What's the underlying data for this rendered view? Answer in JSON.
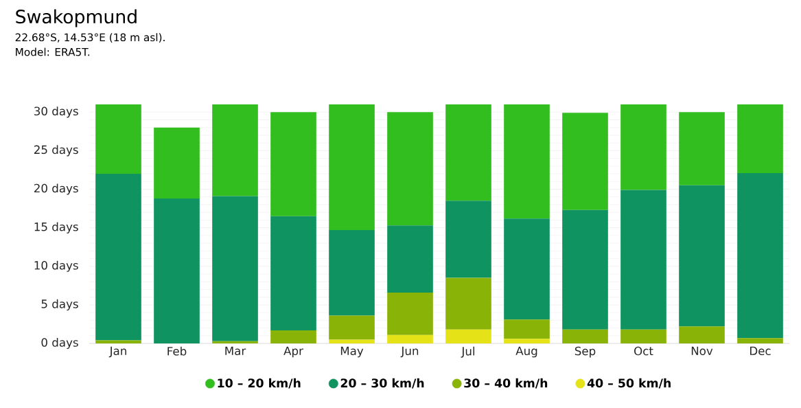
{
  "chart_data": {
    "type": "bar",
    "stacked": true,
    "title": "Swakopmund",
    "subtitle": "22.68°S, 14.53°E (18 m asl).",
    "annotations": [
      "Model: ERA5T."
    ],
    "categories": [
      "Jan",
      "Feb",
      "Mar",
      "Apr",
      "May",
      "Jun",
      "Jul",
      "Aug",
      "Sep",
      "Oct",
      "Nov",
      "Dec"
    ],
    "series": [
      {
        "name": "40 – 50 km/h",
        "color": "#e5e317",
        "values": [
          0,
          0,
          0,
          0,
          0.5,
          1.1,
          1.8,
          0.6,
          0,
          0,
          0,
          0
        ]
      },
      {
        "name": "30 – 40 km/h",
        "color": "#8ab307",
        "values": [
          0.4,
          0,
          0.3,
          1.7,
          3.1,
          5.5,
          6.7,
          2.5,
          1.8,
          1.8,
          2.2,
          0.7
        ]
      },
      {
        "name": "20 – 30 km/h",
        "color": "#0f9360",
        "values": [
          21.6,
          18.8,
          18.8,
          14.8,
          11.1,
          8.7,
          10,
          13.1,
          15.5,
          18.1,
          18.3,
          21.4
        ]
      },
      {
        "name": "10 – 20 km/h",
        "color": "#32be1e",
        "values": [
          9,
          9.2,
          11.9,
          13.5,
          16.3,
          14.7,
          12.5,
          14.8,
          12.6,
          11.1,
          9.5,
          8.9
        ]
      }
    ],
    "ylim": [
      0,
      31
    ],
    "yticks": [
      {
        "value": 0,
        "label": "0 days"
      },
      {
        "value": 5,
        "label": "5 days"
      },
      {
        "value": 10,
        "label": "10 days"
      },
      {
        "value": 15,
        "label": "15 days"
      },
      {
        "value": 20,
        "label": "20 days"
      },
      {
        "value": 25,
        "label": "25 days"
      },
      {
        "value": 30,
        "label": "30 days"
      }
    ],
    "grid": "y",
    "legend": "bottom"
  }
}
